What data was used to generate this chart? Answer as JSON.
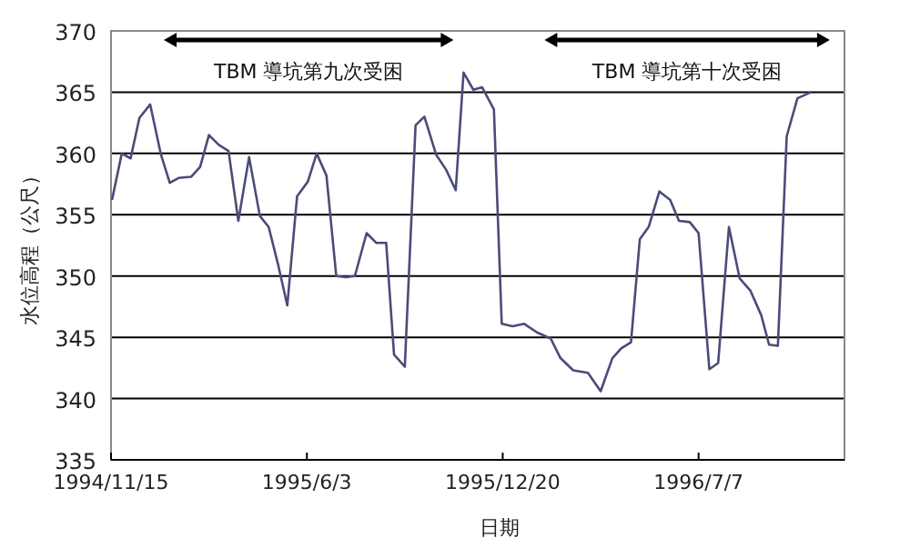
{
  "chart_data": {
    "type": "line",
    "xlabel": "日期",
    "ylabel": "水位高程（公尺）",
    "x": [
      "1994-11-16",
      "1994-11-26",
      "1994-12-05",
      "1994-12-14",
      "1994-12-25",
      "1995-01-05",
      "1995-01-14",
      "1995-01-23",
      "1995-02-05",
      "1995-02-14",
      "1995-02-23",
      "1995-03-05",
      "1995-03-15",
      "1995-03-25",
      "1995-04-05",
      "1995-04-16",
      "1995-04-25",
      "1995-05-05",
      "1995-05-14",
      "1995-05-24",
      "1995-06-04",
      "1995-06-13",
      "1995-06-23",
      "1995-07-03",
      "1995-07-13",
      "1995-07-22",
      "1995-08-03",
      "1995-08-13",
      "1995-08-23",
      "1995-08-31",
      "1995-09-11",
      "1995-09-22",
      "1995-10-01",
      "1995-10-13",
      "1995-10-23",
      "1995-11-02",
      "1995-11-10",
      "1995-11-20",
      "1995-11-29",
      "1995-12-11",
      "1995-12-19",
      "1995-12-30",
      "1996-01-11",
      "1996-01-24",
      "1996-02-07",
      "1996-02-17",
      "1996-03-01",
      "1996-03-16",
      "1996-03-29",
      "1996-04-10",
      "1996-04-19",
      "1996-04-29",
      "1996-05-08",
      "1996-05-17",
      "1996-05-28",
      "1996-06-08",
      "1996-06-17",
      "1996-06-28",
      "1996-07-07",
      "1996-07-18",
      "1996-07-27",
      "1996-08-07",
      "1996-08-18",
      "1996-08-29",
      "1996-09-09",
      "1996-09-17",
      "1996-09-26",
      "1996-10-05",
      "1996-10-16",
      "1996-10-30"
    ],
    "series": [
      {
        "color": "#4a4c78",
        "values": [
          356.2,
          360.0,
          359.6,
          362.9,
          364.0,
          359.9,
          357.6,
          358.0,
          358.1,
          358.9,
          361.5,
          360.7,
          360.2,
          354.5,
          359.7,
          354.9,
          354.0,
          350.8,
          347.6,
          356.5,
          357.7,
          360.0,
          358.2,
          350.0,
          349.9,
          350.0,
          353.5,
          352.7,
          352.7,
          343.6,
          342.6,
          362.3,
          363.0,
          359.9,
          358.7,
          357.0,
          366.6,
          365.2,
          365.4,
          363.6,
          346.1,
          345.9,
          346.1,
          345.4,
          344.9,
          343.3,
          342.3,
          342.1,
          340.6,
          343.3,
          344.1,
          344.6,
          353.0,
          354.0,
          356.9,
          356.2,
          354.5,
          354.4,
          353.5,
          342.4,
          342.9,
          354.0,
          349.8,
          348.8,
          346.8,
          344.4,
          344.3,
          361.4,
          364.5,
          365.0
        ]
      }
    ],
    "xlim": [
      "1994-11-15",
      "1996-12-03"
    ],
    "xticks": [
      {
        "value": "1994-11-15",
        "label": "1994/11/15"
      },
      {
        "value": "1995-06-03",
        "label": "1995/6/3"
      },
      {
        "value": "1995-12-20",
        "label": "1995/12/20"
      },
      {
        "value": "1996-07-07",
        "label": "1996/7/7"
      }
    ],
    "ylim": [
      335,
      370
    ],
    "yticks": [
      335,
      340,
      345,
      350,
      355,
      360,
      365,
      370
    ],
    "grid": "y",
    "marker": "none",
    "line_style": "solid",
    "annotations": [
      "TBM 導坑第九次受困",
      "TBM 導坑第十次受困"
    ]
  }
}
